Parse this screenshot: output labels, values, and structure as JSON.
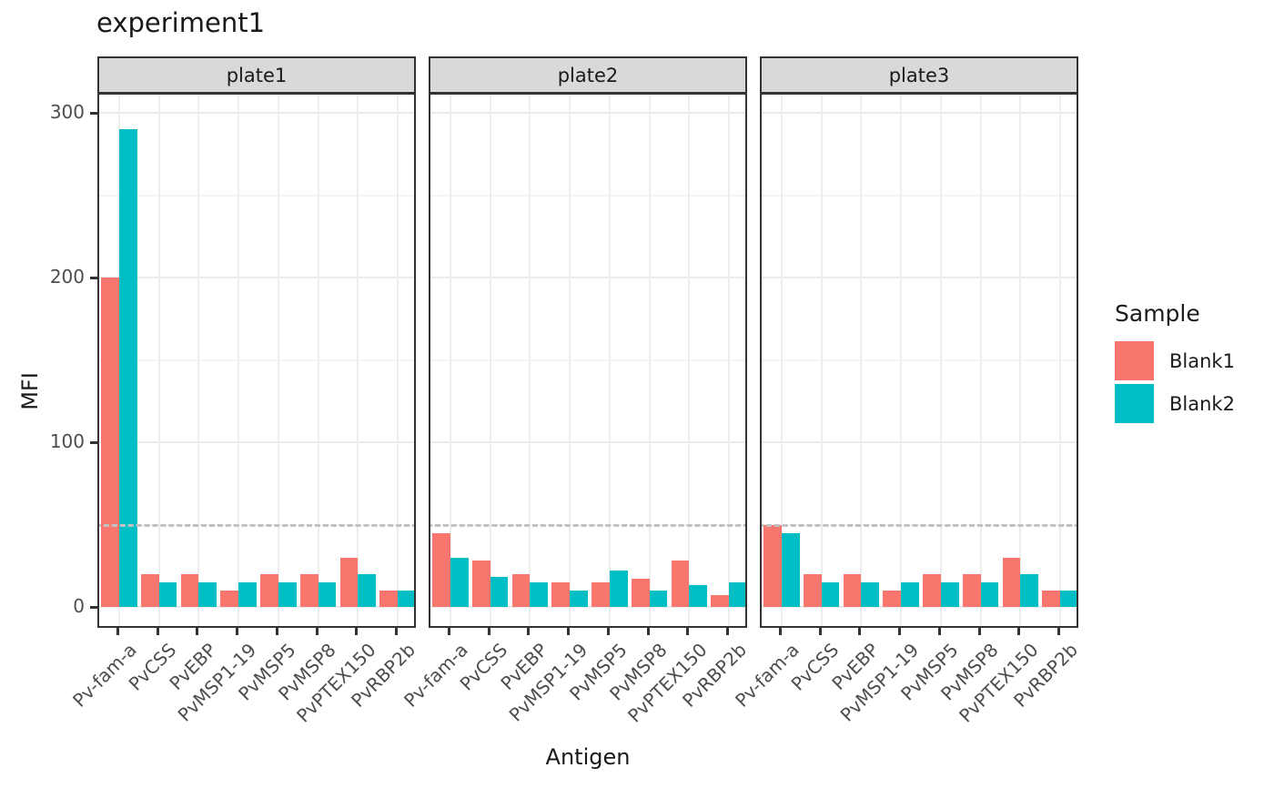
{
  "chart_data": {
    "type": "bar",
    "title": "experiment1",
    "xlabel": "Antigen",
    "ylabel": "MFI",
    "categories": [
      "Pv-fam-a",
      "PvCSS",
      "PvEBP",
      "PvMSP1-19",
      "PvMSP5",
      "PvMSP8",
      "PvPTEX150",
      "PvRBP2b"
    ],
    "yticks": [
      0,
      100,
      200,
      300
    ],
    "yticks_minor": [
      50,
      150,
      250
    ],
    "ylim": [
      0,
      310
    ],
    "grid": true,
    "legend_position": "right",
    "hline": {
      "y": 50,
      "style": "dashed",
      "color": "#c2c2c2"
    },
    "facets": [
      {
        "label": "plate1",
        "series": [
          {
            "name": "Blank1",
            "color": "#F8766D",
            "values": [
              200,
              20,
              20,
              10,
              20,
              20,
              30,
              10
            ]
          },
          {
            "name": "Blank2",
            "color": "#00BFC4",
            "values": [
              290,
              15,
              15,
              15,
              15,
              15,
              20,
              10
            ]
          }
        ]
      },
      {
        "label": "plate2",
        "series": [
          {
            "name": "Blank1",
            "color": "#F8766D",
            "values": [
              45,
              28,
              20,
              15,
              15,
              17,
              28,
              7
            ]
          },
          {
            "name": "Blank2",
            "color": "#00BFC4",
            "values": [
              30,
              18,
              15,
              10,
              22,
              10,
              13,
              15
            ]
          }
        ]
      },
      {
        "label": "plate3",
        "series": [
          {
            "name": "Blank1",
            "color": "#F8766D",
            "values": [
              50,
              20,
              20,
              10,
              20,
              20,
              30,
              10
            ]
          },
          {
            "name": "Blank2",
            "color": "#00BFC4",
            "values": [
              45,
              15,
              15,
              15,
              15,
              15,
              20,
              10
            ]
          }
        ]
      }
    ],
    "legend": {
      "title": "Sample",
      "items": [
        {
          "label": "Blank1",
          "color": "#F8766D"
        },
        {
          "label": "Blank2",
          "color": "#00BFC4"
        }
      ]
    }
  }
}
